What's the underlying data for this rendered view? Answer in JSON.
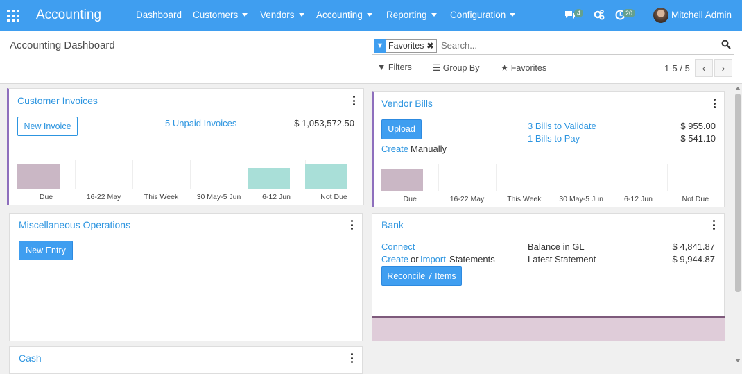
{
  "nav": {
    "app_title": "Accounting",
    "menu": [
      "Dashboard",
      "Customers",
      "Vendors",
      "Accounting",
      "Reporting",
      "Configuration"
    ],
    "chat_count": "4",
    "activity_count": "20",
    "user": "Mitchell Admin"
  },
  "control_panel": {
    "breadcrumb": "Accounting Dashboard",
    "facet": "Favorites",
    "search_placeholder": "Search...",
    "filters": "Filters",
    "group_by": "Group By",
    "favorites": "Favorites",
    "pager": "1-5 / 5"
  },
  "customer_invoices": {
    "title": "Customer Invoices",
    "new_button": "New Invoice",
    "unpaid_link": "5 Unpaid Invoices",
    "amount": "$ 1,053,572.50",
    "chart_data": {
      "type": "bar",
      "categories": [
        "Due",
        "16-22 May",
        "This Week",
        "30 May-5 Jun",
        "6-12 Jun",
        "Not Due"
      ],
      "values": [
        0.92,
        0,
        0,
        0,
        0.8,
        0.95
      ],
      "colors": [
        "#cab7c5",
        "#cab7c5",
        "#cab7c5",
        "#cab7c5",
        "#a9dfd8",
        "#a9dfd8"
      ]
    }
  },
  "vendor_bills": {
    "title": "Vendor Bills",
    "upload_button": "Upload",
    "create_link": "Create",
    "manually_text": "Manually",
    "validate_link": "3 Bills to Validate",
    "validate_amount": "$ 955.00",
    "pay_link": "1 Bills to Pay",
    "pay_amount": "$ 541.10",
    "chart_data": {
      "type": "bar",
      "categories": [
        "Due",
        "16-22 May",
        "This Week",
        "30 May-5 Jun",
        "6-12 Jun",
        "Not Due"
      ],
      "values": [
        0.92,
        0,
        0,
        0,
        0,
        0
      ],
      "colors": [
        "#cab7c5",
        "#cab7c5",
        "#cab7c5",
        "#cab7c5",
        "#a9dfd8",
        "#a9dfd8"
      ]
    }
  },
  "misc_operations": {
    "title": "Miscellaneous Operations",
    "new_button": "New Entry"
  },
  "bank": {
    "title": "Bank",
    "connect_link": "Connect",
    "create_link": "Create",
    "or_text": "or",
    "import_link": "Import",
    "statements_text": "Statements",
    "balance_label": "Balance in GL",
    "balance_amount": "$ 4,841.87",
    "statement_label": "Latest Statement",
    "statement_amount": "$ 9,944.87",
    "reconcile_button": "Reconcile 7 Items"
  },
  "cash": {
    "title": "Cash"
  },
  "colors": {
    "navbar": "#3f9ef0",
    "link": "#2d95e0",
    "accent_bar": "#8e6fbd",
    "past_bar": "#cab7c5",
    "future_bar": "#a9dfd8"
  }
}
